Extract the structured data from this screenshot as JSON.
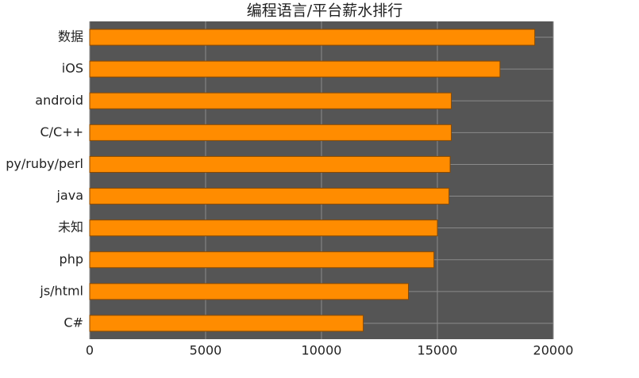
{
  "chart_data": {
    "type": "barh",
    "title": "编程语言/平台薪水排行",
    "categories": [
      "数据",
      "iOS",
      "android",
      "C/C++",
      "py/ruby/perl",
      "java",
      "未知",
      "php",
      "js/html",
      "C#"
    ],
    "values": [
      19200,
      17700,
      15600,
      15600,
      15550,
      15500,
      15000,
      14850,
      13750,
      11800
    ],
    "color": "#ff8c00",
    "xlim": [
      0,
      20000
    ],
    "xticks": [
      0,
      5000,
      10000,
      15000,
      20000
    ],
    "grid": true
  }
}
